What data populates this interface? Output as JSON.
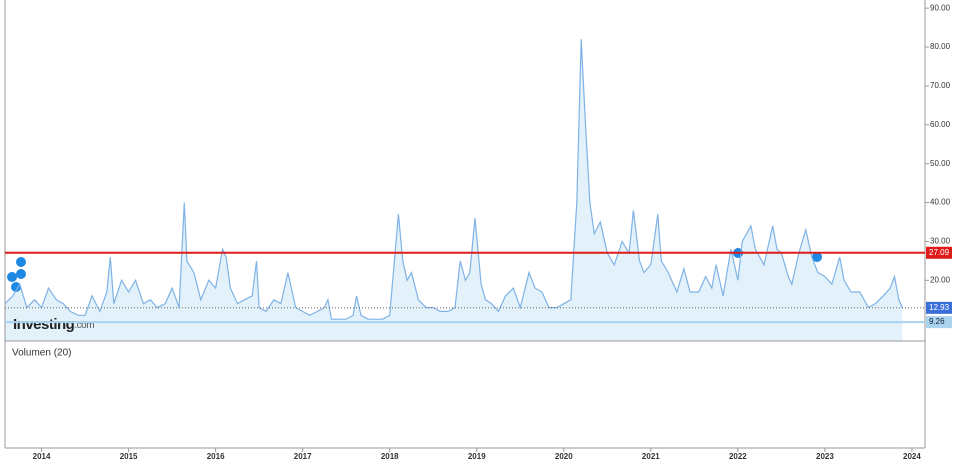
{
  "chart_data": {
    "type": "area",
    "x": [
      2013.58,
      2013.67,
      2013.75,
      2013.83,
      2013.92,
      2014.0,
      2014.08,
      2014.17,
      2014.25,
      2014.33,
      2014.42,
      2014.5,
      2014.58,
      2014.67,
      2014.75,
      2014.79,
      2014.83,
      2014.92,
      2015.0,
      2015.08,
      2015.17,
      2015.25,
      2015.33,
      2015.42,
      2015.5,
      2015.58,
      2015.64,
      2015.67,
      2015.75,
      2015.83,
      2015.92,
      2016.0,
      2016.08,
      2016.12,
      2016.17,
      2016.25,
      2016.33,
      2016.42,
      2016.47,
      2016.5,
      2016.58,
      2016.67,
      2016.75,
      2016.83,
      2016.92,
      2017.0,
      2017.08,
      2017.17,
      2017.25,
      2017.29,
      2017.33,
      2017.42,
      2017.5,
      2017.58,
      2017.62,
      2017.67,
      2017.75,
      2017.83,
      2017.92,
      2018.0,
      2018.1,
      2018.15,
      2018.2,
      2018.25,
      2018.33,
      2018.42,
      2018.5,
      2018.58,
      2018.67,
      2018.75,
      2018.81,
      2018.87,
      2018.92,
      2018.98,
      2019.05,
      2019.1,
      2019.17,
      2019.25,
      2019.33,
      2019.42,
      2019.5,
      2019.6,
      2019.67,
      2019.75,
      2019.83,
      2019.92,
      2020.0,
      2020.08,
      2020.15,
      2020.2,
      2020.25,
      2020.3,
      2020.35,
      2020.42,
      2020.5,
      2020.58,
      2020.67,
      2020.75,
      2020.8,
      2020.87,
      2020.92,
      2021.0,
      2021.08,
      2021.12,
      2021.2,
      2021.3,
      2021.38,
      2021.45,
      2021.55,
      2021.63,
      2021.7,
      2021.75,
      2021.83,
      2021.92,
      2022.0,
      2022.05,
      2022.15,
      2022.2,
      2022.3,
      2022.4,
      2022.45,
      2022.5,
      2022.58,
      2022.62,
      2022.7,
      2022.78,
      2022.85,
      2022.92,
      2023.0,
      2023.08,
      2023.17,
      2023.22,
      2023.3,
      2023.4,
      2023.5,
      2023.58,
      2023.67,
      2023.75,
      2023.8,
      2023.85,
      2023.89
    ],
    "series": [
      {
        "color": "#7fb2e5",
        "values": [
          14,
          16,
          19,
          13,
          15,
          13,
          18,
          15,
          14,
          12,
          11,
          11,
          16,
          12,
          17,
          26,
          14,
          20,
          17,
          20,
          14,
          15,
          13,
          14,
          18,
          13,
          40,
          25,
          22,
          15,
          20,
          18,
          28,
          26,
          18,
          14,
          15,
          16,
          25,
          13,
          12,
          15,
          14,
          22,
          13,
          12,
          11,
          12,
          13,
          15,
          10,
          10,
          10,
          11,
          16,
          11,
          10,
          10,
          10,
          11,
          37,
          25,
          20,
          22,
          15,
          13,
          13,
          12,
          12,
          13,
          25,
          20,
          22,
          36,
          19,
          15,
          14,
          12,
          16,
          18,
          13,
          22,
          18,
          17,
          13,
          13,
          14,
          15,
          40,
          82,
          60,
          40,
          32,
          35,
          27,
          24,
          30,
          27,
          38,
          25,
          22,
          24,
          37,
          25,
          22,
          17,
          23,
          17,
          17,
          21,
          18,
          24,
          16,
          28,
          20,
          30,
          34,
          28,
          24,
          34,
          28,
          27,
          21,
          19,
          27,
          33,
          26,
          22,
          21,
          19,
          26,
          20,
          17,
          17,
          13,
          14,
          16,
          18,
          21,
          15,
          12.93
        ]
      }
    ],
    "xlim": [
      2013.58,
      2024.15
    ],
    "xticks": [
      2014,
      2015,
      2016,
      2017,
      2018,
      2019,
      2020,
      2021,
      2022,
      2023,
      2024
    ],
    "ylim": [
      4.4,
      92.1
    ],
    "yticks": [
      {
        "value": 20,
        "label": "20.00"
      },
      {
        "value": 30,
        "label": "30.00"
      },
      {
        "value": 40,
        "label": "40.00"
      },
      {
        "value": 50,
        "label": "50.00"
      },
      {
        "value": 60,
        "label": "60.00"
      },
      {
        "value": 70,
        "label": "70.00"
      },
      {
        "value": 80,
        "label": "80.00"
      },
      {
        "value": 90,
        "label": "90.00"
      }
    ],
    "hlines": [
      {
        "value": 27.09,
        "color": "#e01b1b"
      },
      {
        "value": 12.93,
        "color": "#3a6fd8"
      },
      {
        "value": 9.26,
        "color": "#a9d3ee"
      }
    ],
    "logo": {
      "brand": "Investing",
      "suffix": ".com"
    },
    "volume_label": "Volumen (20)"
  }
}
